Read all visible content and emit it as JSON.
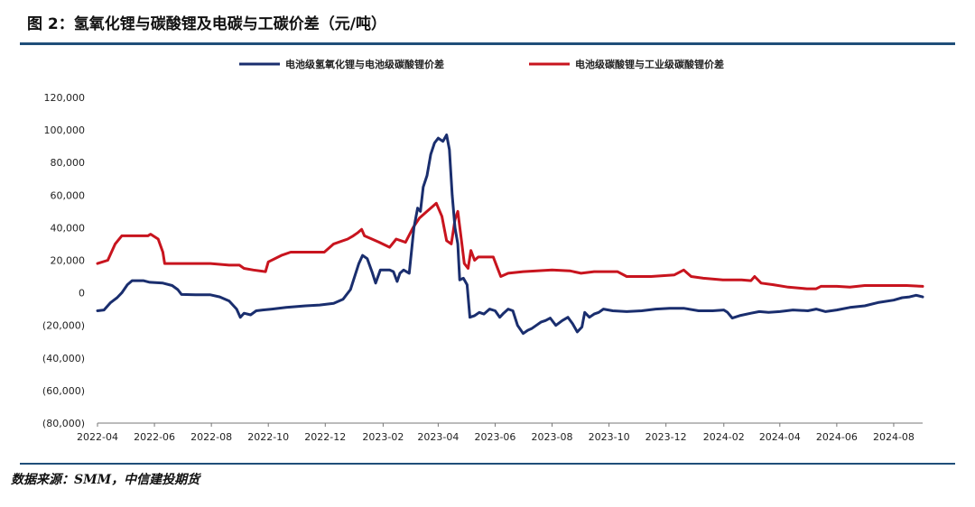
{
  "header": {
    "title": "图 2：氢氧化锂与碳酸锂及电碳与工碳价差（元/吨）"
  },
  "footer": {
    "source": "数据来源：SMM，中信建投期货"
  },
  "colors": {
    "series_1": "#1a2e6e",
    "series_2": "#c8141e",
    "negative_tick": "#c00000",
    "rule": "#1f4e79"
  },
  "chart_data": {
    "type": "line",
    "title": "图 2：氢氧化锂与碳酸锂及电碳与工碳价差（元/吨）",
    "xlabel": "",
    "ylabel": "",
    "ylim": [
      -80000,
      120000
    ],
    "yticks": [
      120000,
      100000,
      80000,
      60000,
      40000,
      20000,
      0,
      -20000,
      -40000,
      -60000,
      -80000
    ],
    "ytick_labels": [
      "120,000",
      "100,000",
      "80,000",
      "60,000",
      "40,000",
      "20,000",
      "0",
      "(20,000)",
      "(40,000)",
      "(60,000)",
      "(80,000)"
    ],
    "xlim": [
      "2022-04-01",
      "2024-09-01"
    ],
    "x_tick_dates": [
      "2022-04-01",
      "2022-06-01",
      "2022-08-01",
      "2022-10-01",
      "2022-12-01",
      "2023-02-01",
      "2023-04-01",
      "2023-06-01",
      "2023-08-01",
      "2023-10-01",
      "2023-12-01",
      "2024-02-01",
      "2024-04-01",
      "2024-06-01",
      "2024-08-01"
    ],
    "x_tick_labels": [
      "2022-04",
      "2022-06",
      "2022-08",
      "2022-10",
      "2022-12",
      "2023-02",
      "2023-04",
      "2023-06",
      "2023-08",
      "2023-10",
      "2023-12",
      "2024-02",
      "2024-04",
      "2024-06",
      "2024-08"
    ],
    "legend": [
      "电池级氢氧化锂与电池级碳酸锂价差",
      "电池级碳酸锂与工业级碳酸锂价差"
    ],
    "series": [
      {
        "name": "电池级氢氧化锂与电池级碳酸锂价差",
        "color": "#1a2e6e",
        "points": [
          [
            "2022-04-01",
            -11000
          ],
          [
            "2022-04-08",
            -10500
          ],
          [
            "2022-04-15",
            -6000
          ],
          [
            "2022-04-22",
            -3000
          ],
          [
            "2022-04-27",
            0
          ],
          [
            "2022-05-03",
            5000
          ],
          [
            "2022-05-08",
            7500
          ],
          [
            "2022-05-20",
            7500
          ],
          [
            "2022-05-27",
            6500
          ],
          [
            "2022-06-10",
            6000
          ],
          [
            "2022-06-20",
            4500
          ],
          [
            "2022-06-26",
            2000
          ],
          [
            "2022-06-30",
            -1000
          ],
          [
            "2022-07-15",
            -1200
          ],
          [
            "2022-07-31",
            -1200
          ],
          [
            "2022-08-10",
            -2500
          ],
          [
            "2022-08-20",
            -5000
          ],
          [
            "2022-08-28",
            -10000
          ],
          [
            "2022-09-01",
            -15000
          ],
          [
            "2022-09-05",
            -12500
          ],
          [
            "2022-09-12",
            -13500
          ],
          [
            "2022-09-18",
            -11000
          ],
          [
            "2022-09-25",
            -10500
          ],
          [
            "2022-10-05",
            -10000
          ],
          [
            "2022-10-20",
            -9000
          ],
          [
            "2022-11-10",
            -8000
          ],
          [
            "2022-11-25",
            -7500
          ],
          [
            "2022-12-10",
            -6500
          ],
          [
            "2022-12-20",
            -4000
          ],
          [
            "2022-12-28",
            2000
          ],
          [
            "2023-01-06",
            18000
          ],
          [
            "2023-01-10",
            23000
          ],
          [
            "2023-01-15",
            21000
          ],
          [
            "2023-01-20",
            13000
          ],
          [
            "2023-01-24",
            6000
          ],
          [
            "2023-01-29",
            14000
          ],
          [
            "2023-02-08",
            14000
          ],
          [
            "2023-02-12",
            13000
          ],
          [
            "2023-02-16",
            7000
          ],
          [
            "2023-02-19",
            12000
          ],
          [
            "2023-02-23",
            14000
          ],
          [
            "2023-03-01",
            12000
          ],
          [
            "2023-03-06",
            40000
          ],
          [
            "2023-03-10",
            52000
          ],
          [
            "2023-03-13",
            50000
          ],
          [
            "2023-03-16",
            65000
          ],
          [
            "2023-03-20",
            72000
          ],
          [
            "2023-03-24",
            85000
          ],
          [
            "2023-03-28",
            92000
          ],
          [
            "2023-04-01",
            95000
          ],
          [
            "2023-04-06",
            93000
          ],
          [
            "2023-04-10",
            97000
          ],
          [
            "2023-04-13",
            88000
          ],
          [
            "2023-04-16",
            60000
          ],
          [
            "2023-04-19",
            40000
          ],
          [
            "2023-04-22",
            30000
          ],
          [
            "2023-04-24",
            8000
          ],
          [
            "2023-04-28",
            9000
          ],
          [
            "2023-05-02",
            5000
          ],
          [
            "2023-05-05",
            -15000
          ],
          [
            "2023-05-10",
            -14000
          ],
          [
            "2023-05-15",
            -12000
          ],
          [
            "2023-05-20",
            -13000
          ],
          [
            "2023-05-26",
            -10000
          ],
          [
            "2023-06-01",
            -11000
          ],
          [
            "2023-06-06",
            -15000
          ],
          [
            "2023-06-10",
            -12500
          ],
          [
            "2023-06-15",
            -10000
          ],
          [
            "2023-06-20",
            -11000
          ],
          [
            "2023-06-25",
            -20000
          ],
          [
            "2023-07-01",
            -25000
          ],
          [
            "2023-07-06",
            -23000
          ],
          [
            "2023-07-10",
            -22000
          ],
          [
            "2023-07-15",
            -20000
          ],
          [
            "2023-07-20",
            -18000
          ],
          [
            "2023-07-25",
            -17000
          ],
          [
            "2023-07-30",
            -15500
          ],
          [
            "2023-08-05",
            -20000
          ],
          [
            "2023-08-12",
            -17000
          ],
          [
            "2023-08-18",
            -15000
          ],
          [
            "2023-08-23",
            -19000
          ],
          [
            "2023-08-28",
            -24000
          ],
          [
            "2023-09-02",
            -21000
          ],
          [
            "2023-09-05",
            -12000
          ],
          [
            "2023-09-10",
            -15000
          ],
          [
            "2023-09-15",
            -13000
          ],
          [
            "2023-09-20",
            -12000
          ],
          [
            "2023-09-25",
            -10000
          ],
          [
            "2023-10-05",
            -11000
          ],
          [
            "2023-10-20",
            -11500
          ],
          [
            "2023-11-05",
            -11000
          ],
          [
            "2023-11-20",
            -10000
          ],
          [
            "2023-12-05",
            -9500
          ],
          [
            "2023-12-20",
            -9500
          ],
          [
            "2024-01-05",
            -11000
          ],
          [
            "2024-01-20",
            -11000
          ],
          [
            "2024-02-01",
            -10500
          ],
          [
            "2024-02-05",
            -12000
          ],
          [
            "2024-02-10",
            -15500
          ],
          [
            "2024-02-18",
            -14000
          ],
          [
            "2024-03-01",
            -12500
          ],
          [
            "2024-03-10",
            -11500
          ],
          [
            "2024-03-20",
            -12000
          ],
          [
            "2024-04-01",
            -11500
          ],
          [
            "2024-04-15",
            -10500
          ],
          [
            "2024-05-01",
            -11000
          ],
          [
            "2024-05-10",
            -10000
          ],
          [
            "2024-05-20",
            -11500
          ],
          [
            "2024-06-01",
            -10500
          ],
          [
            "2024-06-15",
            -9000
          ],
          [
            "2024-07-01",
            -8000
          ],
          [
            "2024-07-15",
            -6000
          ],
          [
            "2024-08-01",
            -4500
          ],
          [
            "2024-08-10",
            -3000
          ],
          [
            "2024-08-18",
            -2500
          ],
          [
            "2024-08-25",
            -1500
          ],
          [
            "2024-09-01",
            -2500
          ]
        ]
      },
      {
        "name": "电池级碳酸锂与工业级碳酸锂价差",
        "color": "#c8141e",
        "points": [
          [
            "2022-04-01",
            18000
          ],
          [
            "2022-04-12",
            20000
          ],
          [
            "2022-04-20",
            30000
          ],
          [
            "2022-04-27",
            35000
          ],
          [
            "2022-05-10",
            35000
          ],
          [
            "2022-05-25",
            35000
          ],
          [
            "2022-05-28",
            36000
          ],
          [
            "2022-06-05",
            33000
          ],
          [
            "2022-06-10",
            25000
          ],
          [
            "2022-06-12",
            18000
          ],
          [
            "2022-06-30",
            18000
          ],
          [
            "2022-07-31",
            18000
          ],
          [
            "2022-08-20",
            17000
          ],
          [
            "2022-08-31",
            17000
          ],
          [
            "2022-09-05",
            15000
          ],
          [
            "2022-09-15",
            14000
          ],
          [
            "2022-09-28",
            13000
          ],
          [
            "2022-10-01",
            19000
          ],
          [
            "2022-10-15",
            23000
          ],
          [
            "2022-10-25",
            25000
          ],
          [
            "2022-11-15",
            25000
          ],
          [
            "2022-11-30",
            25000
          ],
          [
            "2022-12-10",
            30000
          ],
          [
            "2022-12-25",
            33000
          ],
          [
            "2022-12-31",
            35000
          ],
          [
            "2023-01-05",
            37000
          ],
          [
            "2023-01-09",
            39000
          ],
          [
            "2023-01-12",
            35000
          ],
          [
            "2023-01-20",
            33000
          ],
          [
            "2023-01-28",
            31000
          ],
          [
            "2023-02-08",
            28000
          ],
          [
            "2023-02-15",
            33000
          ],
          [
            "2023-02-25",
            31000
          ],
          [
            "2023-03-05",
            40000
          ],
          [
            "2023-03-12",
            46000
          ],
          [
            "2023-03-20",
            50000
          ],
          [
            "2023-03-26",
            53000
          ],
          [
            "2023-03-30",
            55000
          ],
          [
            "2023-04-05",
            47000
          ],
          [
            "2023-04-10",
            32000
          ],
          [
            "2023-04-15",
            30000
          ],
          [
            "2023-04-19",
            45000
          ],
          [
            "2023-04-22",
            50000
          ],
          [
            "2023-04-26",
            32000
          ],
          [
            "2023-04-29",
            18000
          ],
          [
            "2023-05-03",
            15000
          ],
          [
            "2023-05-06",
            26000
          ],
          [
            "2023-05-10",
            20000
          ],
          [
            "2023-05-14",
            22000
          ],
          [
            "2023-05-25",
            22000
          ],
          [
            "2023-05-30",
            22000
          ],
          [
            "2023-06-03",
            16000
          ],
          [
            "2023-06-07",
            10000
          ],
          [
            "2023-06-15",
            12000
          ],
          [
            "2023-07-01",
            13000
          ],
          [
            "2023-08-01",
            14000
          ],
          [
            "2023-08-20",
            13500
          ],
          [
            "2023-09-01",
            12000
          ],
          [
            "2023-09-15",
            13000
          ],
          [
            "2023-10-10",
            13000
          ],
          [
            "2023-10-20",
            10000
          ],
          [
            "2023-11-15",
            10000
          ],
          [
            "2023-12-10",
            11000
          ],
          [
            "2023-12-20",
            14000
          ],
          [
            "2023-12-28",
            10000
          ],
          [
            "2024-01-10",
            9000
          ],
          [
            "2024-01-31",
            8000
          ],
          [
            "2024-02-20",
            8000
          ],
          [
            "2024-03-01",
            7500
          ],
          [
            "2024-03-05",
            10000
          ],
          [
            "2024-03-12",
            6000
          ],
          [
            "2024-03-25",
            5000
          ],
          [
            "2024-04-10",
            3500
          ],
          [
            "2024-04-30",
            2500
          ],
          [
            "2024-05-10",
            2500
          ],
          [
            "2024-05-15",
            4000
          ],
          [
            "2024-06-01",
            4000
          ],
          [
            "2024-06-15",
            3500
          ],
          [
            "2024-07-01",
            4500
          ],
          [
            "2024-07-15",
            4500
          ],
          [
            "2024-08-15",
            4500
          ],
          [
            "2024-09-01",
            4000
          ]
        ]
      }
    ]
  }
}
